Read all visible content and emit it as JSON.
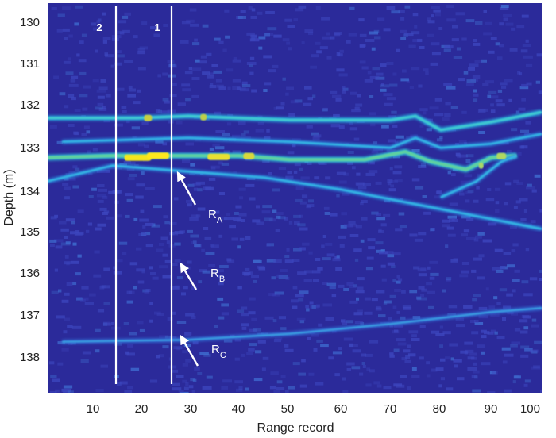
{
  "chart_data": {
    "type": "heatmap",
    "title": "",
    "xlabel": "Range record",
    "ylabel": "Depth (m)",
    "xlim": [
      2,
      100
    ],
    "ylim": [
      138.9,
      129.1
    ],
    "y_inverted": true,
    "x_ticks": [
      10,
      20,
      30,
      40,
      50,
      60,
      70,
      80,
      90,
      100
    ],
    "y_ticks": [
      130,
      131,
      132,
      133,
      134,
      135,
      136,
      137,
      138
    ],
    "colormap": "parula",
    "colors": {
      "background": "#2b2a9a",
      "low": "#3a3fb8",
      "mid": "#2fa8dc",
      "high": "#ffe81a",
      "lines": "#ffffff"
    },
    "vertical_markers": [
      {
        "label": "2",
        "x": 15
      },
      {
        "label": "1",
        "x": 26
      }
    ],
    "reflectors": [
      {
        "name": "surface_132",
        "points": [
          [
            2,
            132.0
          ],
          [
            20,
            132.0
          ],
          [
            30,
            131.95
          ],
          [
            50,
            132.05
          ],
          [
            70,
            132.05
          ],
          [
            75,
            131.95
          ],
          [
            80,
            132.3
          ],
          [
            90,
            132.1
          ],
          [
            100,
            131.85
          ]
        ],
        "intensity": "high"
      },
      {
        "name": "layer_132_5",
        "points": [
          [
            5,
            132.6
          ],
          [
            30,
            132.5
          ],
          [
            50,
            132.6
          ],
          [
            70,
            132.75
          ],
          [
            75,
            132.5
          ],
          [
            80,
            132.75
          ],
          [
            90,
            132.65
          ],
          [
            100,
            132.4
          ]
        ],
        "intensity": "medium"
      },
      {
        "name": "main_133",
        "points": [
          [
            2,
            133.0
          ],
          [
            15,
            132.95
          ],
          [
            20,
            132.95
          ],
          [
            30,
            132.95
          ],
          [
            40,
            132.95
          ],
          [
            50,
            133.05
          ],
          [
            65,
            133.05
          ],
          [
            73,
            132.85
          ],
          [
            78,
            133.1
          ],
          [
            85,
            133.3
          ],
          [
            90,
            133.0
          ],
          [
            95,
            132.95
          ]
        ],
        "intensity": "very-high"
      },
      {
        "name": "dipping_134",
        "points": [
          [
            2,
            133.6
          ],
          [
            15,
            133.2
          ],
          [
            25,
            133.3
          ],
          [
            45,
            133.5
          ],
          [
            60,
            133.8
          ],
          [
            80,
            134.3
          ],
          [
            100,
            134.8
          ]
        ],
        "intensity": "medium"
      },
      {
        "name": "branch_90",
        "points": [
          [
            80,
            134.0
          ],
          [
            87,
            133.6
          ],
          [
            92,
            133.1
          ],
          [
            95,
            132.95
          ]
        ],
        "intensity": "medium"
      },
      {
        "name": "R_C_137_6",
        "points": [
          [
            5,
            137.65
          ],
          [
            30,
            137.6
          ],
          [
            50,
            137.45
          ],
          [
            70,
            137.2
          ],
          [
            90,
            136.9
          ],
          [
            100,
            136.8
          ]
        ],
        "intensity": "low-medium"
      }
    ],
    "annotations": [
      {
        "label": "R",
        "sub": "A",
        "depth_arrow_tip": 133.6,
        "x_arrow_tip": 27
      },
      {
        "label": "R",
        "sub": "B",
        "depth_arrow_tip": 135.85,
        "x_arrow_tip": 28
      },
      {
        "label": "R",
        "sub": "C",
        "depth_arrow_tip": 137.6,
        "x_arrow_tip": 28
      }
    ]
  },
  "labels": {
    "xlabel": "Range record",
    "ylabel": "Depth (m)",
    "x_ticks": [
      "10",
      "20",
      "30",
      "40",
      "50",
      "60",
      "70",
      "80",
      "90",
      "100"
    ],
    "y_ticks": [
      "130",
      "131",
      "132",
      "133",
      "134",
      "135",
      "136",
      "137",
      "138"
    ],
    "marker_1": "1",
    "marker_2": "2",
    "ra_main": "R",
    "ra_sub": "A",
    "rb_main": "R",
    "rb_sub": "B",
    "rc_main": "R",
    "rc_sub": "C"
  }
}
